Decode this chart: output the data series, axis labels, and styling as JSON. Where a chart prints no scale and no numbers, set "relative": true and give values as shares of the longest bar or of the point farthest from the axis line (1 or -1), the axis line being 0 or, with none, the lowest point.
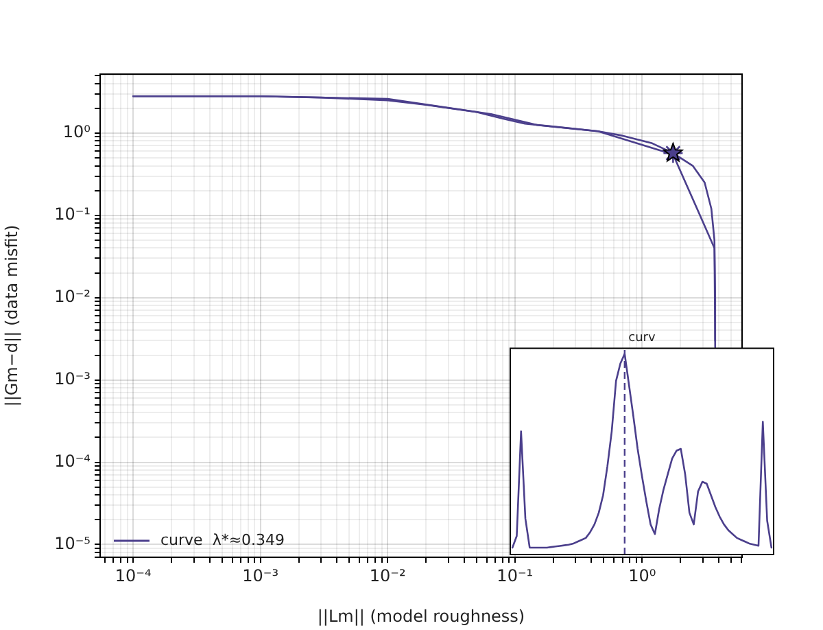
{
  "chart_data": [
    {
      "type": "line",
      "xlabel": "||Lm|| (model roughness)",
      "ylabel": "||Gm−d|| (data misfit)",
      "log": "xy",
      "grid": true,
      "legend": "bottom left",
      "xlim": [
        5.5e-05,
        6.1
      ],
      "ylim": [
        7e-06,
        5.2
      ],
      "xticks": [
        {
          "value": 0.0001,
          "label": "10⁻⁴"
        },
        {
          "value": 0.001,
          "label": "10⁻³"
        },
        {
          "value": 0.01,
          "label": "10⁻²"
        },
        {
          "value": 0.1,
          "label": "10⁻¹"
        },
        {
          "value": 1,
          "label": "10⁰"
        }
      ],
      "yticks": [
        {
          "value": 1e-05,
          "label": "10⁻⁵"
        },
        {
          "value": 0.0001,
          "label": "10⁻⁴"
        },
        {
          "value": 0.001,
          "label": "10⁻³"
        },
        {
          "value": 0.01,
          "label": "10⁻²"
        },
        {
          "value": 0.1,
          "label": "10⁻¹"
        },
        {
          "value": 1,
          "label": "10⁰"
        }
      ],
      "series": [
        {
          "type": "line",
          "name": "curve  λ*≈0.349",
          "color": "#4b3f8c",
          "marker": "none",
          "x": [
            3.75,
            3.75,
            3.7,
            3.5,
            3.1,
            2.5,
            1.75,
            1.2,
            0.7,
            0.45,
            0.2,
            0.12,
            0.08,
            0.05,
            0.02,
            0.01,
            0.003,
            0.001,
            0.0001
          ],
          "values": [
            0.003,
            0.01,
            0.05,
            0.12,
            0.25,
            0.4,
            0.57,
            0.75,
            0.93,
            1.05,
            1.2,
            1.3,
            1.5,
            1.8,
            2.2,
            2.5,
            2.7,
            2.8,
            2.8
          ]
        },
        {
          "type": "line",
          "color": "#4b3f8c",
          "marker": "none",
          "x": [
            3.75,
            3.7,
            1.75,
            0.45,
            0.15,
            0.065,
            0.01,
            0.001,
            0.0001
          ],
          "values": [
            0.0025,
            0.04,
            0.55,
            1.05,
            1.25,
            1.7,
            2.6,
            2.8,
            2.8
          ]
        },
        {
          "type": "scatter",
          "color": "#4b3f8c",
          "marker": "star",
          "x": [
            1.75
          ],
          "values": [
            0.57
          ]
        }
      ]
    },
    {
      "type": "line",
      "title": "curv",
      "relative": true,
      "categories": [
        null,
        null,
        null,
        null,
        null,
        null,
        null,
        null,
        null,
        null,
        null,
        null,
        null,
        null,
        null,
        null,
        null,
        null,
        null,
        null,
        null,
        null,
        null,
        null,
        null,
        null,
        null,
        null,
        null,
        null,
        null,
        null,
        null,
        null,
        null,
        null,
        null,
        null,
        null,
        null,
        null,
        null,
        null,
        null,
        null,
        null,
        null,
        null,
        null,
        null,
        null,
        null,
        null,
        null,
        null,
        null,
        null,
        null,
        null,
        null,
        null
      ],
      "series": [
        {
          "color": "#4b3f8c",
          "values": [
            0,
            0.06,
            0.6,
            0.15,
            0,
            0,
            0,
            0,
            0,
            0.003,
            0.006,
            0.009,
            0.012,
            0.015,
            0.02,
            0.03,
            0.04,
            0.05,
            0.08,
            0.12,
            0.18,
            0.27,
            0.42,
            0.6,
            0.86,
            0.95,
            1,
            0.84,
            0.68,
            0.51,
            0.37,
            0.24,
            0.12,
            0.07,
            0.2,
            0.3,
            0.38,
            0.46,
            0.5,
            0.51,
            0.38,
            0.18,
            0.12,
            0.29,
            0.34,
            0.33,
            0.27,
            0.21,
            0.16,
            0.12,
            0.09,
            0.07,
            0.05,
            0.04,
            0.03,
            0.02,
            0.015,
            0.01,
            0.65,
            0.14,
            0
          ]
        }
      ]
    }
  ]
}
